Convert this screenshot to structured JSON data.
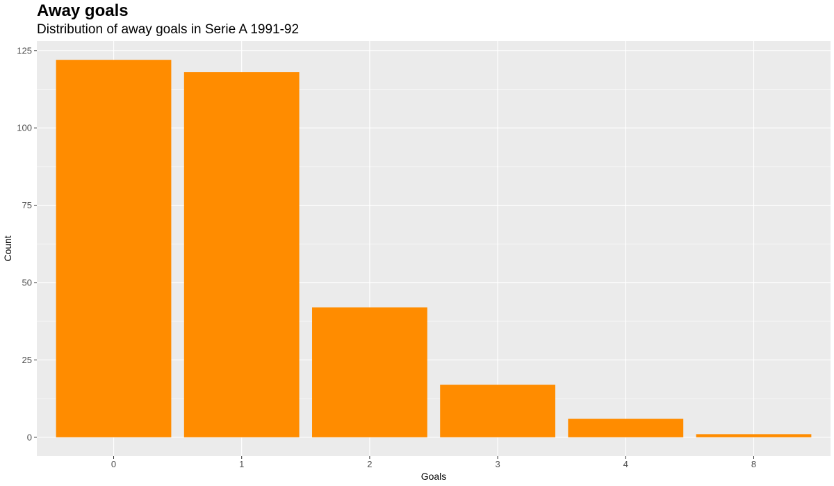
{
  "chart_data": {
    "type": "bar",
    "title": "Away goals",
    "subtitle": "Distribution of away goals in Serie A 1991-92",
    "xlabel": "Goals",
    "ylabel": "Count",
    "categories": [
      "0",
      "1",
      "2",
      "3",
      "4",
      "8"
    ],
    "values": [
      122,
      118,
      42,
      17,
      6,
      1
    ],
    "ylim": [
      -6.1,
      128.1
    ],
    "yticks": [
      0,
      25,
      50,
      75,
      100,
      125
    ],
    "bar_color": "#FF8C00",
    "panel_background": "#EBEBEB",
    "grid": true,
    "legend": "none"
  }
}
